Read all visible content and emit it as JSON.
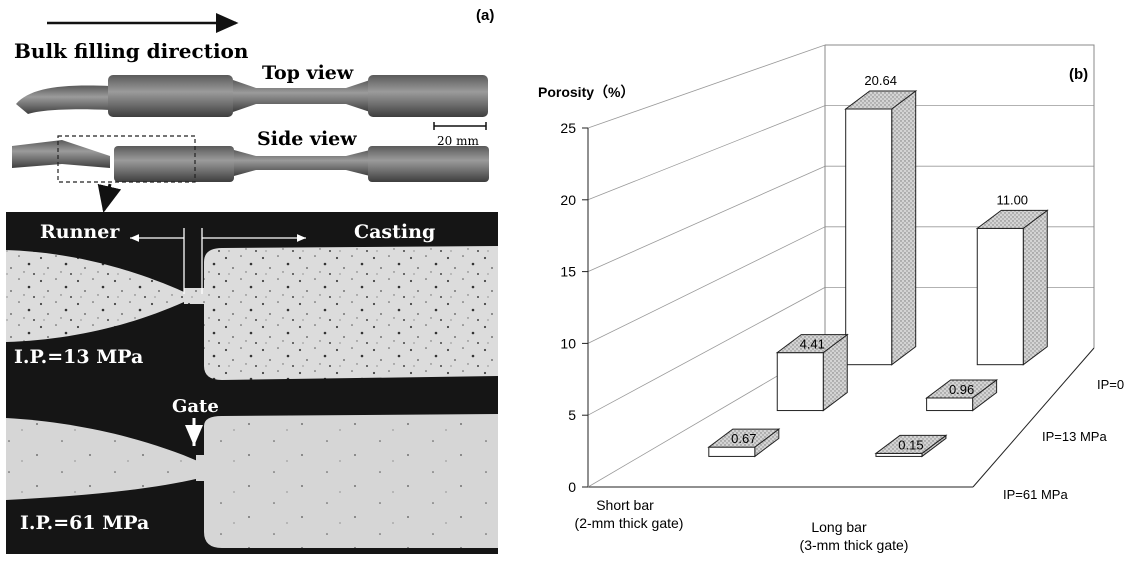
{
  "panel_a": {
    "label": "(a)",
    "direction_label": "Bulk filling direction",
    "top_view_label": "Top view",
    "side_view_label": "Side view",
    "scale_label": "20 mm",
    "runner_label": "Runner",
    "casting_label": "Casting",
    "gate_label": "Gate",
    "ip_upper_label": "I.P.=13 MPa",
    "ip_lower_label": "I.P.=61 MPa"
  },
  "chart_data": {
    "type": "bar",
    "panel_label": "(b)",
    "ylabel": "Porosity（%）",
    "yticks": [
      0,
      5,
      10,
      15,
      20,
      25
    ],
    "ylim": [
      0,
      25
    ],
    "grid": true,
    "categories": [
      "Short bar\n(2-mm thick gate)",
      "Long bar\n(3-mm thick gate)"
    ],
    "series": [
      {
        "name": "IP=0",
        "values": [
          20.64,
          11.0
        ]
      },
      {
        "name": "IP=13 MPa",
        "values": [
          4.41,
          0.96
        ]
      },
      {
        "name": "IP=61 MPa",
        "values": [
          0.67,
          0.15
        ]
      }
    ],
    "value_labels": [
      [
        "20.64",
        "11.00"
      ],
      [
        "4.41",
        "0.96"
      ],
      [
        "0.67",
        "0.15"
      ]
    ]
  }
}
